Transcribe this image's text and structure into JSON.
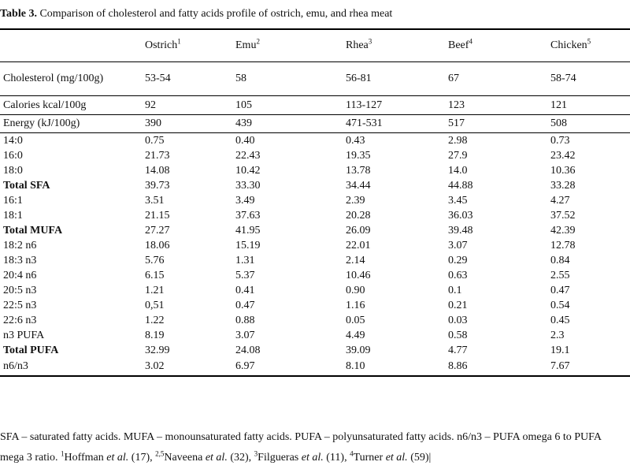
{
  "caption": {
    "label": "Table 3.",
    "text": " Comparison of cholesterol and fatty acids profile of ostrich, emu, and rhea meat"
  },
  "columns": [
    {
      "name": "Ostrich",
      "sup": "1"
    },
    {
      "name": "Emu",
      "sup": "2"
    },
    {
      "name": "Rhea",
      "sup": "3"
    },
    {
      "name": "Beef",
      "sup": "4"
    },
    {
      "name": "Chicken",
      "sup": "5"
    }
  ],
  "rows": [
    {
      "label": "Cholesterol (mg/100g)",
      "values": [
        "53-54",
        "58",
        "56-81",
        "67",
        "58-74"
      ]
    },
    {
      "label": "Calories kcal/100g",
      "values": [
        "92",
        "105",
        "113-127",
        "123",
        "121"
      ]
    },
    {
      "label": "Energy (kJ/100g)",
      "values": [
        "390",
        "439",
        "471-531",
        "517",
        "508"
      ]
    },
    {
      "label": "14:0",
      "values": [
        "0.75",
        "0.40",
        "0.43",
        "2.98",
        "0.73"
      ]
    },
    {
      "label": "16:0",
      "values": [
        "21.73",
        "22.43",
        "19.35",
        "27.9",
        "23.42"
      ]
    },
    {
      "label": "18:0",
      "values": [
        "14.08",
        "10.42",
        "13.78",
        "14.0",
        "10.36"
      ]
    },
    {
      "label": "Total SFA",
      "values": [
        "39.73",
        "33.30",
        "34.44",
        "44.88",
        "33.28"
      ]
    },
    {
      "label": "16:1",
      "values": [
        "3.51",
        "3.49",
        "2.39",
        "3.45",
        "4.27"
      ]
    },
    {
      "label": "18:1",
      "values": [
        "21.15",
        "37.63",
        "20.28",
        "36.03",
        "37.52"
      ]
    },
    {
      "label": "Total MUFA",
      "values": [
        "27.27",
        "41.95",
        "26.09",
        "39.48",
        "42.39"
      ]
    },
    {
      "label": "18:2 n6",
      "values": [
        "18.06",
        "15.19",
        "22.01",
        "3.07",
        "12.78"
      ]
    },
    {
      "label": "18:3 n3",
      "values": [
        "5.76",
        "1.31",
        "2.14",
        "0.29",
        "0.84"
      ]
    },
    {
      "label": "20:4 n6",
      "values": [
        "6.15",
        "5.37",
        "10.46",
        "0.63",
        "2.55"
      ]
    },
    {
      "label": "20:5 n3",
      "values": [
        "1.21",
        "0.41",
        "0.90",
        "0.1",
        "0.47"
      ]
    },
    {
      "label": "22:5 n3",
      "values": [
        "0,51",
        "0.47",
        "1.16",
        "0.21",
        "0.54"
      ]
    },
    {
      "label": "22:6 n3",
      "values": [
        "1.22",
        "0.88",
        "0.05",
        "0.03",
        "0.45"
      ]
    },
    {
      "label": "n3 PUFA",
      "values": [
        "8.19",
        "3.07",
        "4.49",
        "0.58",
        "2.3"
      ]
    },
    {
      "label": "Total PUFA",
      "values": [
        "32.99",
        "24.08",
        "39.09",
        "4.77",
        "19.1"
      ]
    },
    {
      "label": "n6/n3",
      "values": [
        "3.02",
        "6.97",
        "8.10",
        "8.86",
        "7.67"
      ]
    }
  ],
  "footnote": {
    "line1": "SFA – saturated fatty acids. MUFA – monounsaturated fatty acids. PUFA – polyunsaturated fatty acids. n6/n3 – PUFA omega 6 to PUFA",
    "line2": {
      "start": "mega 3 ratio. ",
      "refs": [
        {
          "sup": "1",
          "author": "Hoffman",
          "rest": " (17), "
        },
        {
          "sup": "2,5",
          "author": "Naveena",
          "rest": " (32), "
        },
        {
          "sup": "3",
          "author": "Filgueras",
          "rest": " (11), "
        },
        {
          "sup": "4",
          "author": "Turner",
          "rest": " (59)"
        }
      ],
      "etal": "et al.",
      "end": "|"
    }
  }
}
